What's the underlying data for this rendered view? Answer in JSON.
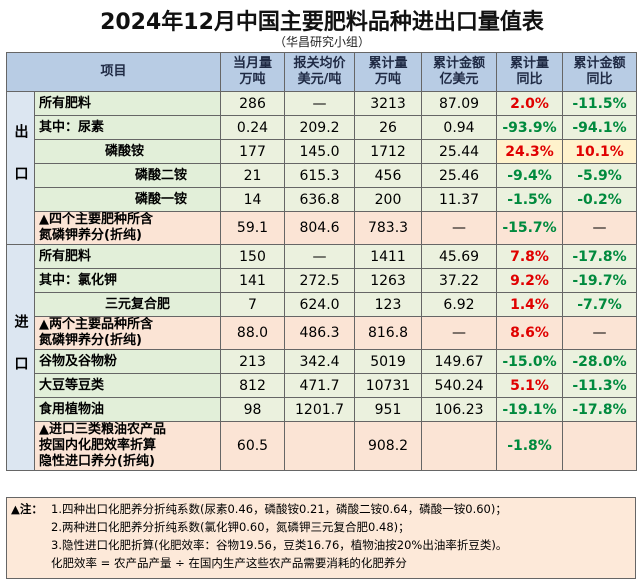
{
  "title": "2024年12月中国主要肥料品种进出口量值表",
  "subtitle": "（华昌研究小组）",
  "header": {
    "item": "项目",
    "columns": [
      [
        "当月量",
        "万吨"
      ],
      [
        "报关均价",
        "美元/吨"
      ],
      [
        "累计量",
        "万吨"
      ],
      [
        "累计金额",
        "亿美元"
      ],
      [
        "累计量",
        "同比"
      ],
      [
        "累计金额",
        "同比"
      ]
    ]
  },
  "sections": [
    {
      "label": "出口",
      "rows": [
        {
          "label": [
            "所有肥料"
          ],
          "cells": [
            "286",
            "—",
            "3213",
            "87.09",
            "2.0%",
            "-11.5%"
          ]
        },
        {
          "label": [
            "其中：尿素"
          ],
          "cells": [
            "0.24",
            "209.2",
            "26",
            "0.94",
            "-93.9%",
            "-94.1%"
          ]
        },
        {
          "label": [
            "磷酸铵"
          ],
          "cells": [
            "177",
            "145.0",
            "1712",
            "25.44",
            "24.3%",
            "10.1%"
          ]
        },
        {
          "label": [
            "磷酸二铵"
          ],
          "cells": [
            "21",
            "615.3",
            "456",
            "25.46",
            "-9.4%",
            "-5.9%"
          ]
        },
        {
          "label": [
            "磷酸一铵"
          ],
          "cells": [
            "14",
            "636.8",
            "200",
            "11.37",
            "-1.5%",
            "-0.2%"
          ]
        },
        {
          "label": [
            "▲四个主要肥种所含",
            "氮磷钾养分(折纯)"
          ],
          "cells": [
            "59.1",
            "804.6",
            "783.3",
            "—",
            "-15.7%",
            "—"
          ]
        }
      ]
    },
    {
      "label": "进口",
      "rows": [
        {
          "label": [
            "所有肥料"
          ],
          "cells": [
            "150",
            "—",
            "1411",
            "45.69",
            "7.8%",
            "-17.8%"
          ]
        },
        {
          "label": [
            "其中：氯化钾"
          ],
          "cells": [
            "141",
            "272.5",
            "1263",
            "37.22",
            "9.2%",
            "-19.7%"
          ]
        },
        {
          "label": [
            "三元复合肥"
          ],
          "cells": [
            "7",
            "624.0",
            "123",
            "6.92",
            "1.4%",
            "-7.7%"
          ]
        },
        {
          "label": [
            "▲两个主要品种所含",
            "氮磷钾养分(折纯)"
          ],
          "cells": [
            "88.0",
            "486.3",
            "816.8",
            "—",
            "8.6%",
            "—"
          ]
        },
        {
          "label": [
            "谷物及谷物粉"
          ],
          "cells": [
            "213",
            "342.4",
            "5019",
            "149.67",
            "-15.0%",
            "-28.0%"
          ]
        },
        {
          "label": [
            "大豆等豆类"
          ],
          "cells": [
            "812",
            "471.7",
            "10731",
            "540.24",
            "5.1%",
            "-11.3%"
          ]
        },
        {
          "label": [
            "食用植物油"
          ],
          "cells": [
            "98",
            "1201.7",
            "951",
            "106.23",
            "-19.1%",
            "-17.8%"
          ]
        },
        {
          "label": [
            "▲进口三类粮油农产品",
            "按国内化肥效率折算",
            "隐性进口养分(折纯)"
          ],
          "cells": [
            "60.5",
            null,
            "908.2",
            null,
            "-1.8%",
            null
          ]
        }
      ]
    }
  ],
  "notes": {
    "label": "▲注：",
    "lines": [
      "1.四种出口化肥养分折纯系数(尿素0.46，磷酸铵0.21，磷酸二铵0.64，磷酸一铵0.60)；",
      "2.两种进口化肥养分折纯系数(氯化钾0.60，氮磷钾三元复合肥0.48)；",
      "3.隐性进口化肥折算(化肥效率：谷物19.56，豆类16.76，植物油按20%出油率折豆类)。",
      "化肥效率 = 农产品产量 ÷ 在国内生产这些农产品需要消耗的化肥养分"
    ]
  }
}
